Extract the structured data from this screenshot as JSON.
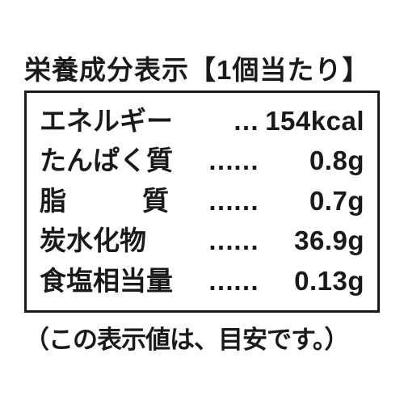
{
  "header": "栄養成分表示【1個当たり】",
  "rows": [
    {
      "label": "エネルギー",
      "value": "154kcal"
    },
    {
      "label": "たんぱく質",
      "value": "0.8g"
    },
    {
      "label_chars": [
        "脂",
        "質"
      ],
      "value": "0.7g"
    },
    {
      "label": "炭水化物",
      "value": "36.9g"
    },
    {
      "label": "食塩相当量",
      "value": "0.13g"
    }
  ],
  "footer": "（この表示値は、目安です。）"
}
